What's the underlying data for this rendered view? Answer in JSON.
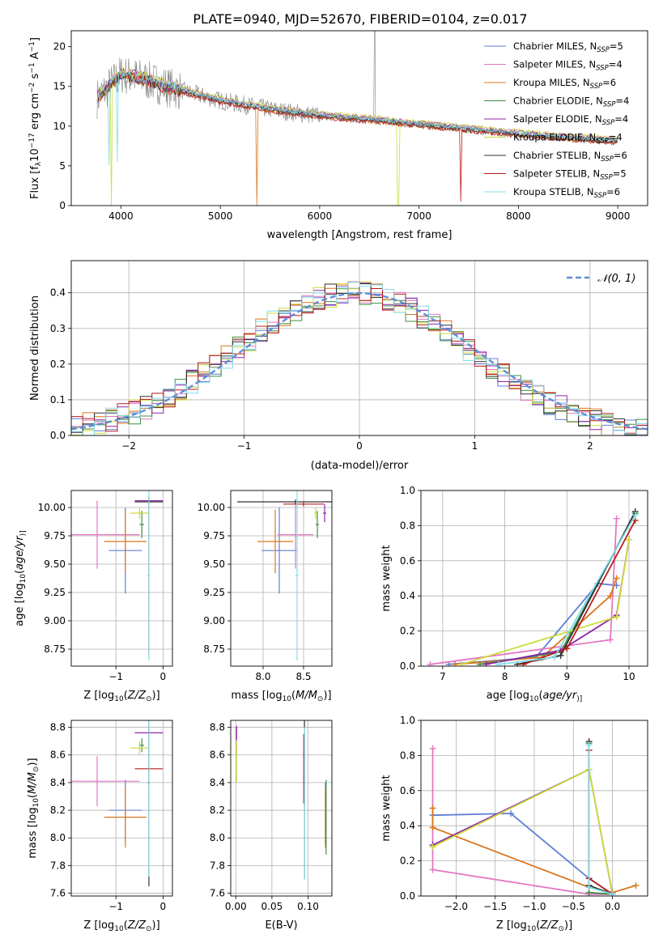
{
  "figure": {
    "title": "PLATE=0940, MJD=52670, FIBERID=0104, z=0.017"
  },
  "chart_data": [
    {
      "id": "spectrum",
      "type": "line",
      "xlabel": "wavelength [Angstrom, rest frame]",
      "ylabel": "Flux [f$_{\\lambda}$10$^{-17}$ erg cm$^{-2}$ s$^{-1}$ A$^{-1}$]",
      "ylabel_parts": [
        "Flux [f",
        "λ",
        "10",
        "−17",
        " erg cm",
        "−2",
        " s",
        "−1",
        " A",
        "−1",
        "]"
      ],
      "xlim": [
        3500,
        9300
      ],
      "ylim": [
        0,
        22
      ],
      "xticks": [
        4000,
        5000,
        6000,
        7000,
        8000,
        9000
      ],
      "yticks": [
        0,
        5,
        10,
        15,
        20
      ],
      "grid": false,
      "legend_position": "top-right",
      "series": [
        {
          "name": "Chabrier MILES, N",
          "sub": "SSP",
          "suffix": "=5",
          "color": "#5f7fd6"
        },
        {
          "name": "Salpeter MILES, N",
          "sub": "SSP",
          "suffix": "=4",
          "color": "#e377c2"
        },
        {
          "name": "Kroupa MILES, N",
          "sub": "SSP",
          "suffix": "=6",
          "color": "#d9771f"
        },
        {
          "name": "Chabrier ELODIE, N",
          "sub": "SSP",
          "suffix": "=4",
          "color": "#3f8f3f"
        },
        {
          "name": "Salpeter ELODIE, N",
          "sub": "SSP",
          "suffix": "=4",
          "color": "#8e24aa"
        },
        {
          "name": "Kroupa ELODIE, N",
          "sub": "SSP",
          "suffix": "=4",
          "color": "#cddc39"
        },
        {
          "name": "Chabrier STELIB, N",
          "sub": "SSP",
          "suffix": "=6",
          "color": "#333333"
        },
        {
          "name": "Salpeter STELIB, N",
          "sub": "SSP",
          "suffix": "=5",
          "color": "#b71c1c"
        },
        {
          "name": "Kroupa STELIB, N",
          "sub": "SSP",
          "suffix": "=6",
          "color": "#80deea"
        }
      ],
      "continuum": {
        "x": [
          3760,
          3900,
          4000,
          4200,
          4500,
          5000,
          5500,
          6000,
          6500,
          7000,
          7500,
          8000,
          8500,
          9000
        ],
        "y": [
          13.5,
          15.2,
          16.5,
          16.0,
          14.8,
          13.2,
          12.1,
          11.3,
          10.8,
          10.2,
          9.6,
          9.0,
          8.5,
          8.1
        ]
      },
      "data_color": "#808080"
    },
    {
      "id": "residuals",
      "type": "histogram",
      "xlabel": "(data-model)/error",
      "ylabel": "Normed distribution",
      "xlim": [
        -2.5,
        2.5
      ],
      "ylim": [
        0,
        0.49
      ],
      "xticks": [
        -2,
        -1,
        0,
        1,
        2
      ],
      "yticks": [
        0.0,
        0.1,
        0.2,
        0.3,
        0.4
      ],
      "grid": true,
      "legend_position": "top-right",
      "reference_curve": {
        "name": "𝒩(0, 1)",
        "color": "#5b8fd8"
      },
      "bin_width": 0.1
    },
    {
      "id": "age-vs-Z",
      "type": "scatter",
      "xlabel": "Z [log$_{10}$(Z/Z$_\\odot$)]",
      "xlabel_parts": [
        "Z [log",
        "10",
        "(",
        "Z/Z",
        "⊙",
        ")]"
      ],
      "ylabel": "age  [log$_{10}$(age/yr)]",
      "ylabel_parts": [
        "age  [log",
        "10",
        "(",
        "age/yr",
        ")]"
      ],
      "xlim": [
        -1.95,
        0.2
      ],
      "ylim": [
        8.6,
        10.15
      ],
      "xticks": [
        -1,
        0
      ],
      "yticks": [
        8.75,
        9.0,
        9.25,
        9.5,
        9.75,
        10.0
      ],
      "grid": true,
      "points": [
        {
          "x": -0.8,
          "xerr": 0.35,
          "y": 9.62,
          "yerr": 0.38,
          "color": "#5f7fd6"
        },
        {
          "x": -1.4,
          "xerr": 0.9,
          "y": 9.76,
          "yerr": 0.3,
          "color": "#e377c2"
        },
        {
          "x": -0.8,
          "xerr": 0.45,
          "y": 9.7,
          "yerr": 0.28,
          "color": "#d9771f"
        },
        {
          "x": -0.45,
          "xerr": 0.05,
          "y": 9.85,
          "yerr": 0.12,
          "color": "#3f8f3f"
        },
        {
          "x": -0.3,
          "xerr": 0.3,
          "y": 10.06,
          "yerr": 0.02,
          "color": "#8e24aa"
        },
        {
          "x": -0.5,
          "xerr": 0.2,
          "y": 9.95,
          "yerr": 0.05,
          "color": "#cddc39"
        },
        {
          "x": -0.3,
          "xerr": 0.3,
          "y": 10.05,
          "yerr": 0.02,
          "color": "#333333"
        },
        {
          "x": -0.3,
          "xerr": 0.02,
          "y": 9.4,
          "yerr": 0.7,
          "color": "#b71c1c"
        },
        {
          "x": -0.3,
          "xerr": 0.02,
          "y": 9.4,
          "yerr": 0.75,
          "color": "#80deea"
        }
      ]
    },
    {
      "id": "age-vs-mass",
      "type": "scatter",
      "xlabel": "mass [log$_{10}$(M/M$_\\odot$)]",
      "xlabel_parts": [
        "mass [log",
        "10",
        "(",
        "M/M",
        "⊙",
        ")]"
      ],
      "ylabel": "",
      "xlim": [
        7.6,
        8.85
      ],
      "ylim": [
        8.6,
        10.15
      ],
      "xticks": [
        8.0,
        8.5
      ],
      "yticks": [
        8.75,
        9.0,
        9.25,
        9.5,
        9.75,
        10.0
      ],
      "grid": true,
      "points": [
        {
          "x": 8.2,
          "xerr": 0.22,
          "y": 9.62,
          "yerr": 0.38,
          "color": "#5f7fd6"
        },
        {
          "x": 8.4,
          "xerr": 0.22,
          "y": 9.76,
          "yerr": 0.3,
          "color": "#e377c2"
        },
        {
          "x": 8.15,
          "xerr": 0.22,
          "y": 9.7,
          "yerr": 0.28,
          "color": "#d9771f"
        },
        {
          "x": 8.67,
          "xerr": 0.02,
          "y": 9.85,
          "yerr": 0.12,
          "color": "#3f8f3f"
        },
        {
          "x": 8.76,
          "xerr": 0.02,
          "y": 9.95,
          "yerr": 0.08,
          "color": "#8e24aa"
        },
        {
          "x": 8.65,
          "xerr": 0.02,
          "y": 9.95,
          "yerr": 0.05,
          "color": "#cddc39"
        },
        {
          "x": 8.4,
          "xerr": 0.72,
          "y": 10.05,
          "yerr": 0.02,
          "color": "#333333"
        },
        {
          "x": 8.5,
          "xerr": 0.25,
          "y": 10.03,
          "yerr": 0.02,
          "color": "#b71c1c"
        },
        {
          "x": 8.42,
          "xerr": 0.02,
          "y": 9.4,
          "yerr": 0.75,
          "color": "#80deea"
        }
      ]
    },
    {
      "id": "weight-vs-age",
      "type": "line",
      "xlabel": "age  [log$_{10}$(age/yr)]",
      "xlabel_parts": [
        "age  [log",
        "10",
        "(",
        "age/yr",
        ")]"
      ],
      "ylabel": "mass weight",
      "xlim": [
        6.65,
        10.3
      ],
      "ylim": [
        0,
        1.0
      ],
      "xticks": [
        7,
        8,
        9,
        10
      ],
      "yticks": [
        0.0,
        0.2,
        0.4,
        0.6,
        0.8,
        1.0
      ],
      "grid": true,
      "series": [
        {
          "color": "#5f7fd6",
          "x": [
            7.1,
            8.5,
            9.5,
            9.8
          ],
          "y": [
            0.01,
            0.05,
            0.47,
            0.46
          ]
        },
        {
          "color": "#e377c2",
          "x": [
            6.8,
            9.7,
            9.8
          ],
          "y": [
            0.01,
            0.15,
            0.84
          ]
        },
        {
          "color": "#d9771f",
          "x": [
            7.2,
            8.6,
            9.7,
            9.8
          ],
          "y": [
            0.01,
            0.05,
            0.4,
            0.5
          ]
        },
        {
          "color": "#3f8f3f",
          "x": [
            7.6,
            8.9,
            10.1
          ],
          "y": [
            0.01,
            0.08,
            0.87
          ]
        },
        {
          "color": "#8e24aa",
          "x": [
            7.7,
            8.9,
            9.8,
            10.0
          ],
          "y": [
            0.01,
            0.09,
            0.29,
            0.72
          ]
        },
        {
          "color": "#cddc39",
          "x": [
            7.3,
            9.8,
            10.0
          ],
          "y": [
            0.01,
            0.28,
            0.72
          ]
        },
        {
          "color": "#333333",
          "x": [
            8.2,
            8.9,
            10.1
          ],
          "y": [
            0.01,
            0.06,
            0.88
          ]
        },
        {
          "color": "#b71c1c",
          "x": [
            8.3,
            9.0,
            10.1
          ],
          "y": [
            0.01,
            0.1,
            0.83
          ]
        },
        {
          "color": "#80deea",
          "x": [
            7.9,
            8.8,
            10.1
          ],
          "y": [
            0.01,
            0.05,
            0.86
          ]
        }
      ]
    },
    {
      "id": "mass-vs-Z",
      "type": "scatter",
      "xlabel": "Z [log$_{10}$(Z/Z$_\\odot$)]",
      "xlabel_parts": [
        "Z [log",
        "10",
        "(",
        "Z/Z",
        "⊙",
        ")]"
      ],
      "ylabel": "mass [log$_{10}$(M/M$_\\odot$)]",
      "ylabel_parts": [
        "mass [log",
        "10",
        "(",
        "M/M",
        "⊙",
        ")]"
      ],
      "xlim": [
        -1.95,
        0.2
      ],
      "ylim": [
        7.58,
        8.85
      ],
      "xticks": [
        -1,
        0
      ],
      "yticks": [
        7.6,
        7.8,
        8.0,
        8.2,
        8.4,
        8.6,
        8.8
      ],
      "grid": true,
      "points": [
        {
          "x": -0.8,
          "xerr": 0.35,
          "y": 8.2,
          "yerr": 0.22,
          "color": "#5f7fd6"
        },
        {
          "x": -1.4,
          "xerr": 0.9,
          "y": 8.41,
          "yerr": 0.18,
          "color": "#e377c2"
        },
        {
          "x": -0.8,
          "xerr": 0.45,
          "y": 8.15,
          "yerr": 0.22,
          "color": "#d9771f"
        },
        {
          "x": -0.45,
          "xerr": 0.05,
          "y": 8.67,
          "yerr": 0.05,
          "color": "#3f8f3f"
        },
        {
          "x": -0.3,
          "xerr": 0.3,
          "y": 8.76,
          "yerr": 0.03,
          "color": "#8e24aa"
        },
        {
          "x": -0.5,
          "xerr": 0.2,
          "y": 8.65,
          "yerr": 0.05,
          "color": "#cddc39"
        },
        {
          "x": -0.3,
          "xerr": 0.02,
          "y": 8.4,
          "yerr": 0.75,
          "color": "#333333"
        },
        {
          "x": -0.3,
          "xerr": 0.3,
          "y": 8.5,
          "yerr": 0.02,
          "color": "#b71c1c"
        },
        {
          "x": -0.3,
          "xerr": 0.02,
          "y": 8.3,
          "yerr": 0.58,
          "color": "#80deea"
        }
      ]
    },
    {
      "id": "mass-vs-ebv",
      "type": "scatter",
      "xlabel": "E(B-V)",
      "ylabel": "",
      "xlim": [
        -0.007,
        0.133
      ],
      "ylim": [
        7.58,
        8.85
      ],
      "xticks": [
        0.0,
        0.05,
        0.1
      ],
      "yticks": [
        7.6,
        7.8,
        8.0,
        8.2,
        8.4,
        8.6,
        8.8
      ],
      "grid": true,
      "points": [
        {
          "x": 0.124,
          "xerr": 0.0,
          "y": 8.18,
          "yerr": 0.22,
          "color": "#5f7fd6"
        },
        {
          "x": 0.001,
          "xerr": 0.0,
          "y": 8.7,
          "yerr": 0.1,
          "color": "#e377c2"
        },
        {
          "x": 0.124,
          "xerr": 0.0,
          "y": 8.15,
          "yerr": 0.22,
          "color": "#d9771f"
        },
        {
          "x": 0.125,
          "xerr": 0.0,
          "y": 8.15,
          "yerr": 0.27,
          "color": "#3f8f3f"
        },
        {
          "x": 0.001,
          "xerr": 0.0,
          "y": 8.76,
          "yerr": 0.05,
          "color": "#8e24aa"
        },
        {
          "x": 0.001,
          "xerr": 0.0,
          "y": 8.55,
          "yerr": 0.15,
          "color": "#cddc39"
        },
        {
          "x": 0.095,
          "xerr": 0.0,
          "y": 8.3,
          "yerr": 0.6,
          "color": "#333333"
        },
        {
          "x": 0.094,
          "xerr": 0.0,
          "y": 8.5,
          "yerr": 0.25,
          "color": "#b71c1c"
        },
        {
          "x": 0.095,
          "xerr": 0.0,
          "y": 8.25,
          "yerr": 0.55,
          "color": "#80deea"
        }
      ]
    },
    {
      "id": "weight-vs-Z",
      "type": "line",
      "xlabel": "Z [log$_{10}$(Z/Z$_\\odot$)]",
      "xlabel_parts": [
        "Z [log",
        "10",
        "(",
        "Z/Z",
        "⊙",
        ")]"
      ],
      "ylabel": "mass weight",
      "xlim": [
        -2.45,
        0.45
      ],
      "ylim": [
        0,
        1.0
      ],
      "xticks": [
        -2.0,
        -1.5,
        -1.0,
        -0.5,
        0.0
      ],
      "yticks": [
        0.0,
        0.2,
        0.4,
        0.6,
        0.8,
        1.0
      ],
      "grid": true,
      "series": [
        {
          "color": "#5f7fd6",
          "x": [
            -2.3,
            -1.3,
            -0.3,
            0.0
          ],
          "y": [
            0.46,
            0.47,
            0.1,
            0.01
          ]
        },
        {
          "color": "#e377c2",
          "x": [
            -2.3,
            -2.3,
            -0.3,
            0.0
          ],
          "y": [
            0.84,
            0.15,
            0.01,
            0.01
          ]
        },
        {
          "color": "#d9771f",
          "x": [
            -2.3,
            -2.3,
            -0.3,
            0.0,
            0.3
          ],
          "y": [
            0.5,
            0.39,
            0.05,
            0.02,
            0.06
          ]
        },
        {
          "color": "#3f8f3f",
          "x": [
            -0.3,
            -0.3,
            0.0
          ],
          "y": [
            0.87,
            0.02,
            0.01
          ]
        },
        {
          "color": "#8e24aa",
          "x": [
            -2.3,
            -0.3,
            0.0
          ],
          "y": [
            0.29,
            0.72,
            0.01
          ]
        },
        {
          "color": "#cddc39",
          "x": [
            -2.3,
            -0.3,
            0.0
          ],
          "y": [
            0.28,
            0.72,
            0.01
          ]
        },
        {
          "color": "#333333",
          "x": [
            -0.3,
            -0.3,
            0.0
          ],
          "y": [
            0.88,
            0.06,
            0.01
          ]
        },
        {
          "color": "#b71c1c",
          "x": [
            -0.3,
            -0.3,
            0.0
          ],
          "y": [
            0.83,
            0.1,
            0.01
          ]
        },
        {
          "color": "#80deea",
          "x": [
            -0.3,
            -0.3,
            0.0
          ],
          "y": [
            0.86,
            0.05,
            0.01
          ]
        }
      ]
    }
  ]
}
